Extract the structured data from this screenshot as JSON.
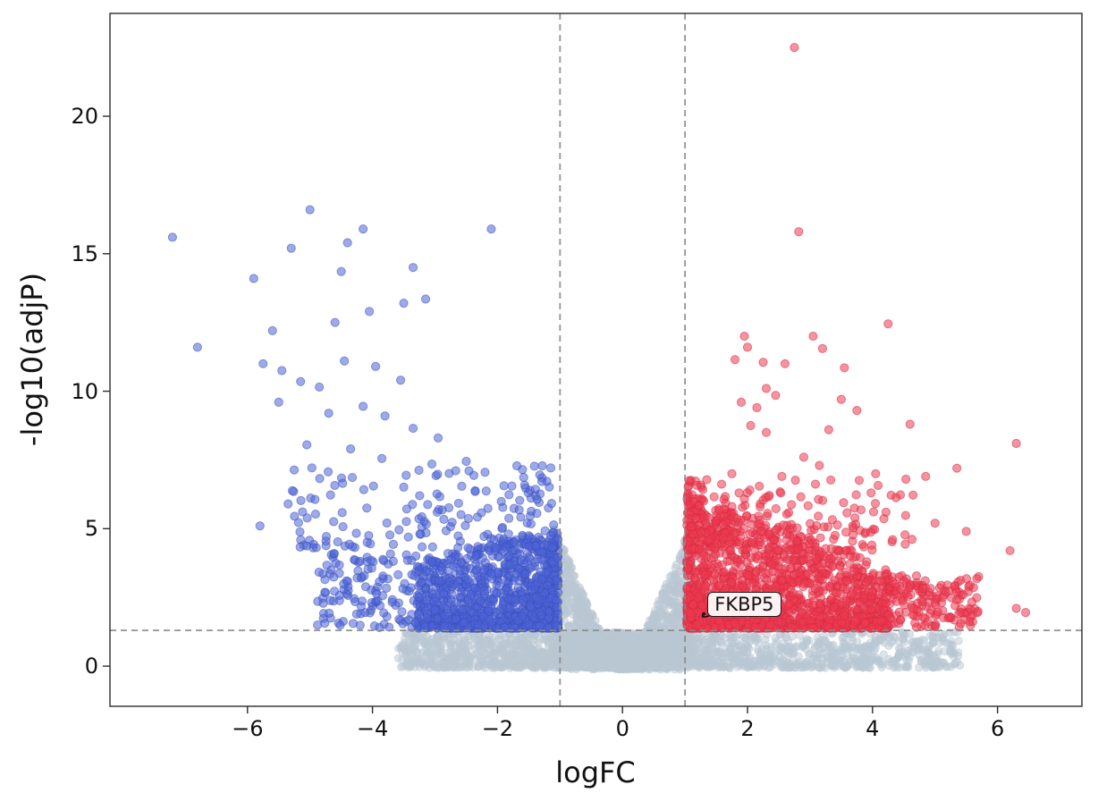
{
  "chart_data": {
    "type": "scatter",
    "variant": "volcano-plot",
    "title": "",
    "xlabel": "logFC",
    "ylabel": "-log10(adjP)",
    "xlim": [
      -8.2,
      7.35
    ],
    "ylim": [
      -1.46,
      23.74
    ],
    "grid": false,
    "legend": null,
    "x_ticks": {
      "values": [
        -6,
        -4,
        -2,
        0,
        2,
        4,
        6
      ],
      "labels": [
        "−6",
        "−4",
        "−2",
        "0",
        "2",
        "4",
        "6"
      ]
    },
    "y_ticks": {
      "values": [
        0,
        5,
        10,
        15,
        20
      ],
      "labels": [
        "0",
        "5",
        "10",
        "15",
        "20"
      ]
    },
    "thresholds": {
      "logfc_lines": [
        -1,
        1
      ],
      "pvalue_line": 1.301,
      "line_color": "#888888",
      "line_style": "dashed"
    },
    "annotations": [
      {
        "text": "FKBP5",
        "x": 1.36,
        "y": 2.25,
        "point": {
          "x": 1.3,
          "y": 1.9
        }
      }
    ],
    "series": [
      {
        "name": "not_significant",
        "color": "#bac7d3",
        "edge_color": "#bac7d3",
        "alpha": 0.5,
        "radius": 4.2,
        "approx_count": 3700,
        "outliers": []
      },
      {
        "name": "downregulated",
        "color": "#4d64d9",
        "edge_color": "#3c50b8",
        "alpha": 0.55,
        "radius": 4.6,
        "approx_count": 1490,
        "outliers": [
          [
            -7.2,
            15.6
          ],
          [
            -6.8,
            11.6
          ],
          [
            -5.3,
            15.2
          ],
          [
            -5.0,
            16.6
          ],
          [
            -4.4,
            15.4
          ],
          [
            -4.15,
            15.9
          ],
          [
            -2.1,
            15.9
          ],
          [
            -5.9,
            14.1
          ],
          [
            -4.5,
            14.35
          ],
          [
            -3.35,
            14.5
          ],
          [
            -4.05,
            12.9
          ],
          [
            -5.6,
            12.2
          ],
          [
            -4.6,
            12.5
          ],
          [
            -3.5,
            13.2
          ],
          [
            -3.15,
            13.35
          ],
          [
            -5.75,
            11.0
          ],
          [
            -5.45,
            10.75
          ],
          [
            -5.15,
            10.35
          ],
          [
            -4.85,
            10.15
          ],
          [
            -4.45,
            11.1
          ],
          [
            -3.95,
            10.9
          ],
          [
            -3.55,
            10.4
          ],
          [
            -5.5,
            9.6
          ],
          [
            -4.7,
            9.2
          ],
          [
            -4.15,
            9.45
          ],
          [
            -3.8,
            9.1
          ],
          [
            -3.35,
            8.65
          ],
          [
            -2.95,
            8.3
          ],
          [
            -5.05,
            8.05
          ],
          [
            -4.35,
            7.9
          ],
          [
            -3.85,
            7.55
          ],
          [
            -3.05,
            7.35
          ],
          [
            -2.5,
            7.45
          ],
          [
            -2.2,
            7.05
          ],
          [
            -1.6,
            7.15
          ],
          [
            -5.8,
            5.1
          ],
          [
            -5.35,
            5.9
          ]
        ]
      },
      {
        "name": "upregulated",
        "color": "#ef3b50",
        "edge_color": "#d42b44",
        "alpha": 0.55,
        "radius": 4.6,
        "approx_count": 1975,
        "outliers": [
          [
            2.75,
            22.5
          ],
          [
            2.82,
            15.8
          ],
          [
            4.25,
            12.45
          ],
          [
            1.95,
            12.0
          ],
          [
            2.0,
            11.6
          ],
          [
            1.8,
            11.15
          ],
          [
            2.25,
            11.05
          ],
          [
            2.6,
            11.0
          ],
          [
            3.05,
            12.0
          ],
          [
            3.2,
            11.55
          ],
          [
            3.55,
            10.85
          ],
          [
            2.3,
            10.1
          ],
          [
            2.45,
            9.85
          ],
          [
            1.9,
            9.6
          ],
          [
            2.15,
            9.4
          ],
          [
            3.5,
            9.7
          ],
          [
            3.75,
            9.3
          ],
          [
            2.05,
            8.75
          ],
          [
            2.3,
            8.5
          ],
          [
            3.3,
            8.6
          ],
          [
            4.6,
            8.8
          ],
          [
            6.3,
            8.1
          ],
          [
            2.9,
            7.6
          ],
          [
            3.15,
            7.3
          ],
          [
            4.05,
            7.0
          ],
          [
            4.85,
            6.9
          ],
          [
            5.35,
            7.2
          ],
          [
            1.75,
            7.0
          ],
          [
            2.55,
            6.9
          ],
          [
            6.2,
            4.2
          ],
          [
            5.45,
            2.6
          ],
          [
            6.3,
            2.1
          ],
          [
            6.45,
            1.95
          ],
          [
            5.0,
            5.2
          ],
          [
            5.5,
            4.9
          ]
        ]
      }
    ],
    "generation": {
      "seed": 42,
      "clusters": [
        {
          "series": "not_significant",
          "kind": "funnel",
          "count": 1500,
          "x_half": 1.12,
          "y_peak": 5.3,
          "exp": 1.25
        },
        {
          "series": "not_significant",
          "kind": "band",
          "count": 2200,
          "pos_reach": 5.4,
          "neg_reach": 3.6,
          "x_pow": 1.6,
          "y_max": 1.3,
          "y_pow": 1.4
        },
        {
          "series": "downregulated",
          "kind": "block",
          "count": 1150,
          "x_start": -1.03,
          "dir": -1,
          "x_extent": 2.25,
          "x_pow": 1.4,
          "y_base": 1.38,
          "y_top0": 4.9,
          "slope": 0.45,
          "top_min": 3.2,
          "y_pow": 1.9
        },
        {
          "series": "downregulated",
          "kind": "spray",
          "count": 130,
          "x_start": -3.2,
          "dir": -1,
          "x_extent": 1.7,
          "x_pow": 1.0,
          "y_base": 1.4,
          "y_extent": 2.7,
          "y_pow": 1.0
        },
        {
          "series": "downregulated",
          "kind": "spray",
          "count": 170,
          "x_start": -1.1,
          "dir": -1,
          "x_extent": 4.2,
          "x_pow": 1.5,
          "y_base": 4.3,
          "y_extent": 3.0,
          "y_pow": 1.7
        },
        {
          "series": "upregulated",
          "kind": "block",
          "count": 1600,
          "x_start": 1.03,
          "dir": 1,
          "x_extent": 3.25,
          "x_pow": 1.45,
          "y_base": 1.38,
          "y_top0": 6.3,
          "slope": 0.85,
          "top_min": 2.6,
          "y_pow": 1.9
        },
        {
          "series": "upregulated",
          "kind": "spray",
          "count": 150,
          "x_start": 4.25,
          "dir": 1,
          "x_extent": 1.45,
          "x_pow": 1.0,
          "y_base": 1.4,
          "y_extent": 1.9,
          "y_pow": 1.0
        },
        {
          "series": "upregulated",
          "kind": "spray",
          "count": 190,
          "x_start": 1.05,
          "dir": 1,
          "x_extent": 3.6,
          "x_pow": 1.5,
          "y_base": 4.2,
          "y_extent": 2.6,
          "y_pow": 1.6
        }
      ]
    }
  }
}
